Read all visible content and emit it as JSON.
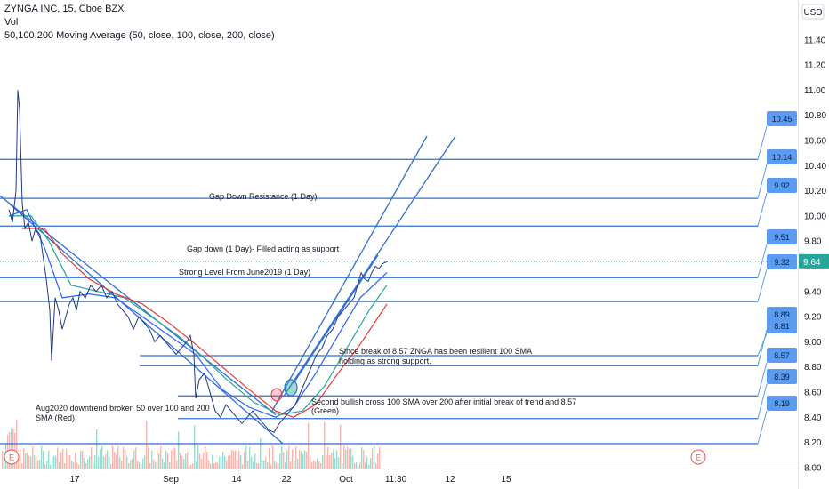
{
  "header": {
    "symbol_line": "ZYNGA INC, 15, Cboe BZX",
    "volume_label": "Vol",
    "ma_label": "50,100,200 Moving Average (50, close, 100, close, 200, close)"
  },
  "currency": "USD",
  "last_price": "9.64",
  "colors": {
    "price": "#1e3a8a",
    "ma50": "#2962ff",
    "ma100": "#26a69a",
    "ma200": "#e53935",
    "drawings": "#2f6fd6",
    "callout": "#5b9cf0",
    "last_price_badge": "#26a69a",
    "vol_up": "#9fd8cf",
    "vol_down": "#f5b7b1"
  },
  "chart_data": {
    "type": "line",
    "ylim": [
      7.85,
      11.5
    ],
    "y_ticks": [
      "11.40",
      "11.20",
      "11.00",
      "10.80",
      "10.60",
      "10.40",
      "10.20",
      "10.00",
      "9.80",
      "9.60",
      "9.40",
      "9.20",
      "9.00",
      "8.80",
      "8.60",
      "8.40",
      "8.20",
      "8.00"
    ],
    "x_ticks": [
      "17",
      "Sep",
      "14",
      "22",
      "Oct",
      "11:30",
      "12",
      "15"
    ],
    "price_series": [
      [
        0,
        10.05
      ],
      [
        4,
        9.95
      ],
      [
        8,
        10.2
      ],
      [
        10,
        11.0
      ],
      [
        12,
        10.85
      ],
      [
        15,
        10.1
      ],
      [
        18,
        9.9
      ],
      [
        22,
        9.95
      ],
      [
        26,
        9.8
      ],
      [
        30,
        9.9
      ],
      [
        35,
        9.85
      ],
      [
        38,
        9.7
      ],
      [
        42,
        9.5
      ],
      [
        46,
        9.25
      ],
      [
        48,
        8.85
      ],
      [
        52,
        9.35
      ],
      [
        56,
        9.25
      ],
      [
        60,
        9.1
      ],
      [
        64,
        9.2
      ],
      [
        68,
        9.3
      ],
      [
        72,
        9.35
      ],
      [
        76,
        9.25
      ],
      [
        80,
        9.4
      ],
      [
        86,
        9.35
      ],
      [
        92,
        9.45
      ],
      [
        98,
        9.4
      ],
      [
        104,
        9.45
      ],
      [
        110,
        9.35
      ],
      [
        116,
        9.4
      ],
      [
        122,
        9.3
      ],
      [
        128,
        9.25
      ],
      [
        134,
        9.2
      ],
      [
        140,
        9.1
      ],
      [
        146,
        9.2
      ],
      [
        152,
        9.15
      ],
      [
        158,
        9.1
      ],
      [
        164,
        9.0
      ],
      [
        170,
        9.05
      ],
      [
        176,
        9.0
      ],
      [
        182,
        8.95
      ],
      [
        188,
        8.9
      ],
      [
        194,
        8.95
      ],
      [
        200,
        9.0
      ],
      [
        204,
        9.05
      ],
      [
        208,
        8.9
      ],
      [
        210,
        8.55
      ],
      [
        214,
        8.7
      ],
      [
        220,
        8.75
      ],
      [
        226,
        8.6
      ],
      [
        232,
        8.45
      ],
      [
        238,
        8.4
      ],
      [
        244,
        8.5
      ],
      [
        250,
        8.45
      ],
      [
        256,
        8.4
      ],
      [
        262,
        8.35
      ],
      [
        268,
        8.4
      ],
      [
        274,
        8.45
      ],
      [
        280,
        8.4
      ],
      [
        286,
        8.35
      ],
      [
        292,
        8.3
      ],
      [
        298,
        8.28
      ],
      [
        304,
        8.35
      ],
      [
        310,
        8.4
      ],
      [
        316,
        8.45
      ],
      [
        322,
        8.5
      ],
      [
        328,
        8.6
      ],
      [
        334,
        8.7
      ],
      [
        340,
        8.8
      ],
      [
        346,
        8.9
      ],
      [
        352,
        8.95
      ],
      [
        358,
        9.05
      ],
      [
        364,
        9.1
      ],
      [
        370,
        9.2
      ],
      [
        376,
        9.25
      ],
      [
        382,
        9.3
      ],
      [
        388,
        9.35
      ],
      [
        392,
        9.45
      ],
      [
        396,
        9.55
      ],
      [
        400,
        9.5
      ],
      [
        404,
        9.48
      ],
      [
        408,
        9.55
      ],
      [
        412,
        9.6
      ],
      [
        416,
        9.58
      ],
      [
        420,
        9.62
      ],
      [
        426,
        9.64
      ]
    ],
    "ma_series": [
      {
        "key": "ma50",
        "points": [
          [
            0,
            10.0
          ],
          [
            20,
            10.05
          ],
          [
            40,
            9.75
          ],
          [
            60,
            9.35
          ],
          [
            90,
            9.38
          ],
          [
            120,
            9.35
          ],
          [
            150,
            9.2
          ],
          [
            180,
            9.05
          ],
          [
            210,
            8.9
          ],
          [
            240,
            8.62
          ],
          [
            270,
            8.48
          ],
          [
            300,
            8.4
          ],
          [
            320,
            8.48
          ],
          [
            345,
            8.75
          ],
          [
            370,
            9.05
          ],
          [
            395,
            9.35
          ],
          [
            425,
            9.55
          ]
        ]
      },
      {
        "key": "ma100",
        "points": [
          [
            0,
            10.0
          ],
          [
            25,
            10.0
          ],
          [
            45,
            9.8
          ],
          [
            70,
            9.45
          ],
          [
            100,
            9.4
          ],
          [
            130,
            9.35
          ],
          [
            160,
            9.2
          ],
          [
            190,
            9.05
          ],
          [
            215,
            8.9
          ],
          [
            245,
            8.7
          ],
          [
            275,
            8.52
          ],
          [
            305,
            8.42
          ],
          [
            330,
            8.45
          ],
          [
            355,
            8.65
          ],
          [
            380,
            8.95
          ],
          [
            405,
            9.25
          ],
          [
            425,
            9.45
          ]
        ]
      },
      {
        "key": "ma200",
        "points": [
          [
            15,
            9.9
          ],
          [
            40,
            9.9
          ],
          [
            60,
            9.7
          ],
          [
            90,
            9.5
          ],
          [
            120,
            9.38
          ],
          [
            150,
            9.3
          ],
          [
            180,
            9.15
          ],
          [
            210,
            8.98
          ],
          [
            240,
            8.8
          ],
          [
            270,
            8.62
          ],
          [
            300,
            8.45
          ],
          [
            320,
            8.4
          ],
          [
            345,
            8.5
          ],
          [
            370,
            8.75
          ],
          [
            395,
            8.98
          ],
          [
            425,
            9.3
          ]
        ]
      }
    ],
    "horizontal_levels": [
      {
        "value": 10.45,
        "label": "10.45"
      },
      {
        "value": 10.14,
        "label": "10.14"
      },
      {
        "value": 9.92,
        "label": "9.92"
      },
      {
        "value": 9.51,
        "label": "9.51"
      },
      {
        "value": 9.32,
        "label": "9.32"
      },
      {
        "value": 8.89,
        "label": "8.89"
      },
      {
        "value": 8.81,
        "label": "8.81"
      },
      {
        "value": 8.57,
        "label": "8.57"
      },
      {
        "value": 8.39,
        "label": "8.39"
      },
      {
        "value": 8.19,
        "label": "8.19"
      }
    ],
    "annotations": [
      "Gap Down Resistance (1 Day)",
      "Gap down (1 Day)- Filled acting as support",
      "Strong Level From June2019 (1 Day)",
      "Since break of 8.57 ZNGA has been resilient 100 SMA",
      "holding as strong support.",
      "Second bullish cross 100 SMA over 200 after initial break of trend and 8.57",
      "(Green)",
      "Aug2020 downtrend broken 50 over 100 and 200",
      "SMA (Red)"
    ],
    "earnings_markers": [
      "E",
      "E"
    ]
  }
}
